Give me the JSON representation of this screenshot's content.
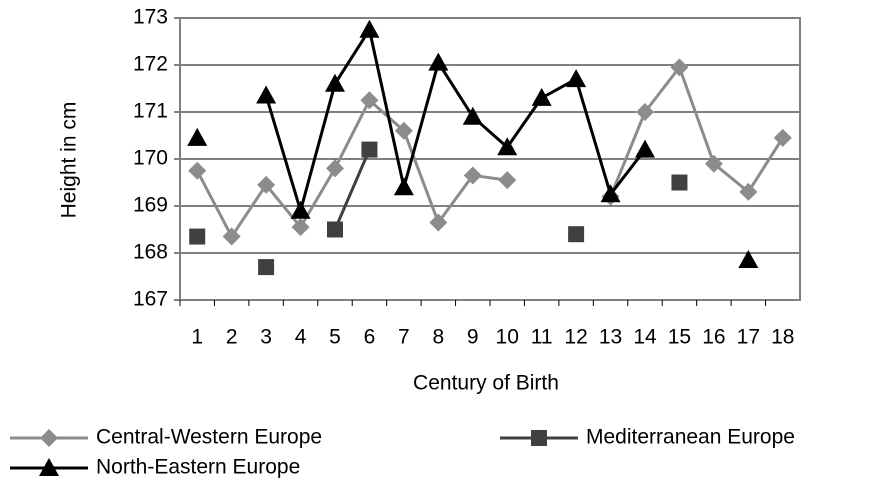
{
  "chart_data": {
    "type": "line",
    "x_label": "Century of Birth",
    "y_label": "Height in cm",
    "categories": [
      "1",
      "2",
      "3",
      "4",
      "5",
      "6",
      "7",
      "8",
      "9",
      "10",
      "11",
      "12",
      "13",
      "14",
      "15",
      "16",
      "17",
      "18"
    ],
    "series": [
      {
        "name": "Central-Western Europe",
        "color": "#8c8c8c",
        "marker": "diamond",
        "values": [
          169.75,
          168.35,
          169.45,
          168.55,
          169.8,
          171.25,
          170.6,
          168.65,
          169.65,
          169.55,
          null,
          null,
          169.2,
          171.0,
          171.95,
          169.9,
          169.3,
          170.45
        ]
      },
      {
        "name": "Mediterranean Europe",
        "color": "#404040",
        "marker": "square",
        "values": [
          168.35,
          null,
          167.7,
          null,
          168.5,
          170.2,
          null,
          null,
          null,
          null,
          null,
          168.4,
          null,
          null,
          169.5,
          null,
          null,
          null
        ]
      },
      {
        "name": "North-Eastern Europe",
        "color": "#000000",
        "marker": "triangle",
        "values": [
          170.45,
          null,
          171.35,
          168.9,
          171.6,
          172.75,
          169.4,
          172.05,
          170.9,
          170.25,
          171.3,
          171.7,
          169.25,
          170.2,
          null,
          null,
          167.85,
          null
        ]
      }
    ],
    "ylim": [
      167,
      173
    ],
    "yticks": [
      167,
      168,
      169,
      170,
      171,
      172,
      173
    ],
    "grid": true
  }
}
